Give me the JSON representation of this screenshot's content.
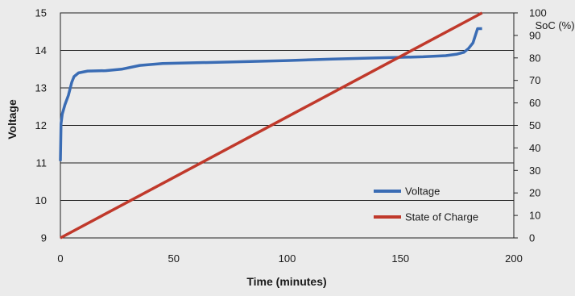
{
  "chart_data": {
    "type": "line",
    "xlabel": "Time (minutes)",
    "ylabel": "Voltage",
    "y2label": "SoC (%)",
    "xlim": [
      0,
      200
    ],
    "ylim": [
      9,
      15
    ],
    "y2lim": [
      0,
      100
    ],
    "x_ticks": [
      0,
      50,
      100,
      150,
      200
    ],
    "y_ticks": [
      9,
      10,
      11,
      12,
      13,
      14,
      15
    ],
    "y2_ticks": [
      0,
      10,
      20,
      30,
      40,
      50,
      60,
      70,
      80,
      90,
      100
    ],
    "grid": "horizontal",
    "legend_position": "bottom-right",
    "series": [
      {
        "name": "Voltage",
        "axis": "left",
        "color": "#3a6cb4",
        "x": [
          0,
          0.3,
          0.8,
          2,
          3.5,
          5,
          6,
          8,
          12,
          20,
          27,
          35,
          45,
          60,
          80,
          100,
          120,
          140,
          160,
          170,
          175,
          178,
          180,
          182,
          184,
          186
        ],
        "y": [
          11.05,
          12.05,
          12.3,
          12.55,
          12.8,
          13.15,
          13.3,
          13.4,
          13.45,
          13.46,
          13.5,
          13.6,
          13.65,
          13.67,
          13.7,
          13.73,
          13.77,
          13.8,
          13.83,
          13.86,
          13.9,
          13.95,
          14.05,
          14.2,
          14.58,
          14.58
        ]
      },
      {
        "name": "State of Charge",
        "axis": "right",
        "color": "#c0392b",
        "x": [
          0,
          186
        ],
        "y": [
          0,
          100
        ]
      }
    ]
  }
}
